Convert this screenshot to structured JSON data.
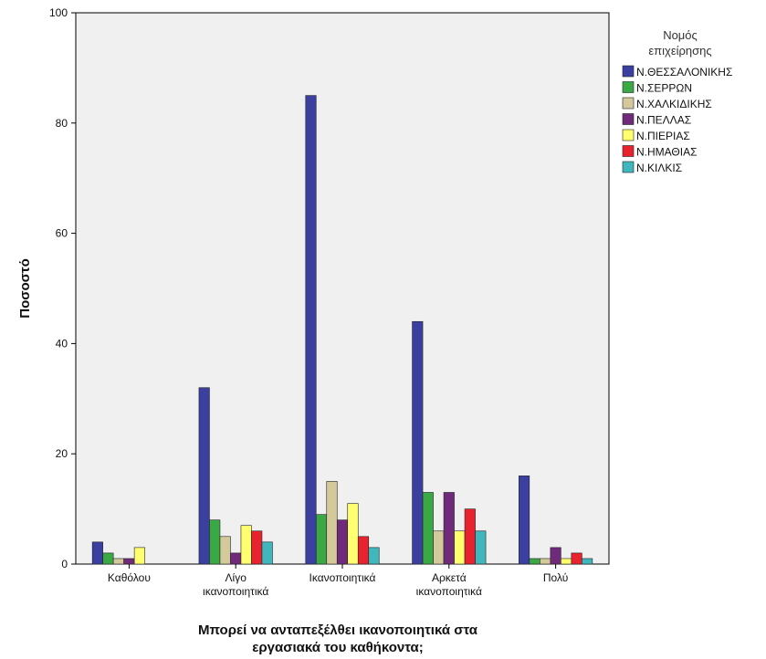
{
  "chart_data": {
    "type": "bar",
    "title": "",
    "ylabel": "Ποσοστό",
    "xlabel_lines": [
      "Μπορεί να ανταπεξέλθει ικανοποιητικά στα",
      "εργασιακά του καθήκοντα;"
    ],
    "ylim": [
      0,
      100
    ],
    "yticks": [
      0,
      20,
      40,
      60,
      80,
      100
    ],
    "grid": false,
    "legend_position": "top-right",
    "legend_title_lines": [
      "Νομός",
      "επιχείρησης"
    ],
    "categories": [
      {
        "lines": [
          "Καθόλου"
        ]
      },
      {
        "lines": [
          "Λίγο",
          "ικανοποιητικά"
        ]
      },
      {
        "lines": [
          "Ικανοποιητικά"
        ]
      },
      {
        "lines": [
          "Αρκετά",
          "ικανοποιητικά"
        ]
      },
      {
        "lines": [
          "Πολύ"
        ]
      }
    ],
    "series": [
      {
        "name": "Ν.ΘΕΣΣΑΛΟΝΙΚΗΣ",
        "color": "#3a3fa0",
        "values": [
          4,
          32,
          85,
          44,
          16
        ]
      },
      {
        "name": "Ν.ΣΕΡΡΩΝ",
        "color": "#3aa845",
        "values": [
          2,
          8,
          9,
          13,
          1
        ]
      },
      {
        "name": "Ν.ΧΑΛΚΙΔΙΚΗΣ",
        "color": "#d3c99a",
        "values": [
          1,
          5,
          15,
          6,
          1
        ]
      },
      {
        "name": "Ν.ΠΕΛΛΑΣ",
        "color": "#6f2a7c",
        "values": [
          1,
          2,
          8,
          13,
          3
        ]
      },
      {
        "name": "Ν.ΠΙΕΡΙΑΣ",
        "color": "#ffff70",
        "values": [
          3,
          7,
          11,
          6,
          1
        ]
      },
      {
        "name": "Ν.ΗΜΑΘΙΑΣ",
        "color": "#e8232f",
        "values": [
          0,
          6,
          5,
          10,
          2
        ]
      },
      {
        "name": "Ν.ΚΙΛΚΙΣ",
        "color": "#3fb7bd",
        "values": [
          0,
          4,
          3,
          6,
          1
        ]
      }
    ],
    "plot_background": "#f0f0f0"
  }
}
